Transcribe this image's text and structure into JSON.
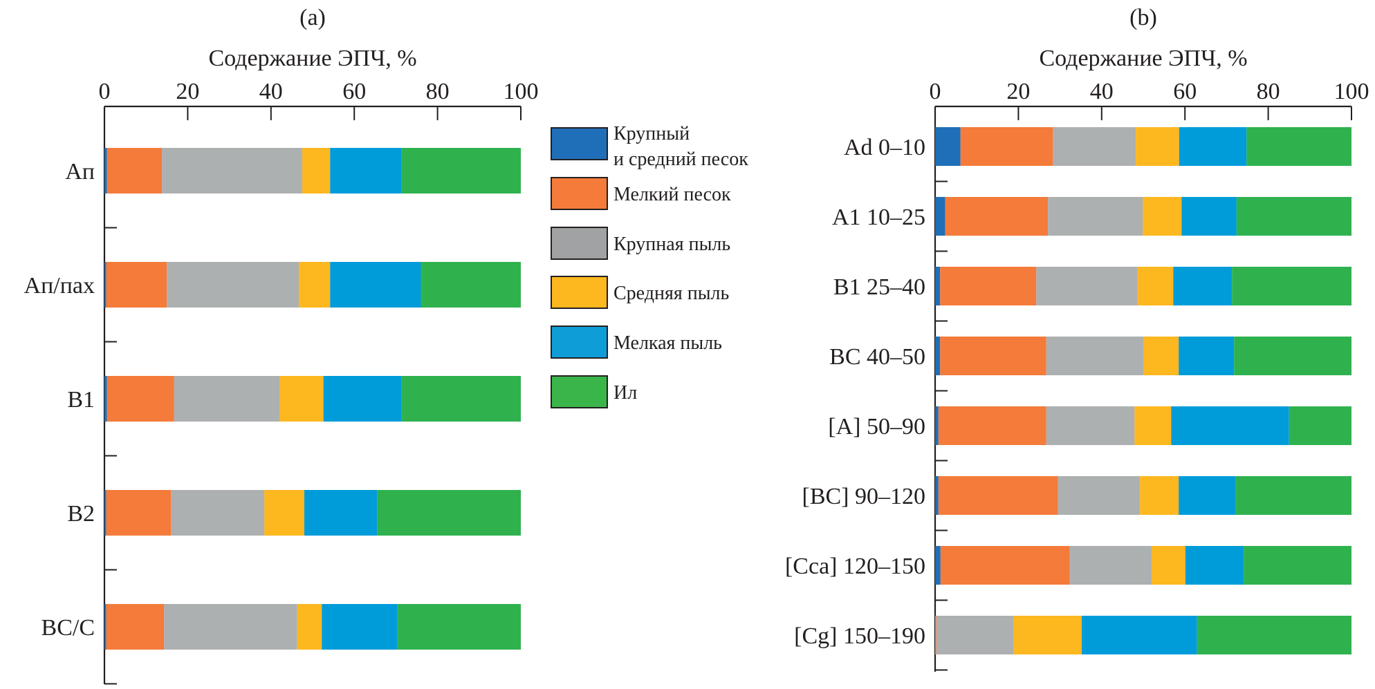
{
  "legend": {
    "items": [
      {
        "label_lines": [
          "Крупный",
          "и средний песок"
        ],
        "color": "#1f6fb8"
      },
      {
        "label_lines": [
          "Мелкий песок"
        ],
        "color": "#f47b3a"
      },
      {
        "label_lines": [
          "Крупная пыль"
        ],
        "color": "#a0a2a3"
      },
      {
        "label_lines": [
          "Средняя пыль"
        ],
        "color": "#fdb71f"
      },
      {
        "label_lines": [
          "Мелкая пыль"
        ],
        "color": "#0f9dd8"
      },
      {
        "label_lines": [
          "Ил"
        ],
        "color": "#3ab54a"
      }
    ]
  },
  "chart_data": [
    {
      "type": "bar",
      "orientation": "horizontal",
      "stacked": true,
      "panel_label": "(a)",
      "title": "",
      "xlabel": "Содержание ЭПЧ, %",
      "ylabel": "",
      "xlim": [
        0,
        100
      ],
      "xticks": [
        0,
        20,
        40,
        60,
        80,
        100
      ],
      "x_axis_position": "top",
      "grid": false,
      "categories": [
        "Ап",
        "Ап/пах",
        "B1",
        "B2",
        "BC/C"
      ],
      "series": [
        {
          "name": "Крупный и средний песок",
          "color": "#1f6fb8",
          "values": [
            0.6,
            0.4,
            0.6,
            0.4,
            0.4
          ]
        },
        {
          "name": "Мелкий песок",
          "color": "#f47b3a",
          "values": [
            13.2,
            14.6,
            16.1,
            15.6,
            13.9
          ]
        },
        {
          "name": "Крупная пыль",
          "color": "#adb0b1",
          "values": [
            33.7,
            31.7,
            25.4,
            22.4,
            32.0
          ]
        },
        {
          "name": "Средняя пыль",
          "color": "#fdb71f",
          "values": [
            6.7,
            7.5,
            10.5,
            9.6,
            5.9
          ]
        },
        {
          "name": "Мелкая пыль",
          "color": "#009cda",
          "values": [
            17.2,
            21.8,
            18.8,
            17.5,
            18.2
          ]
        },
        {
          "name": "Ил",
          "color": "#2fb24e",
          "values": [
            28.6,
            24.0,
            28.6,
            34.5,
            29.6
          ]
        }
      ]
    },
    {
      "type": "bar",
      "orientation": "horizontal",
      "stacked": true,
      "panel_label": "(b)",
      "title": "",
      "xlabel": "Содержание ЭПЧ, %",
      "ylabel": "",
      "xlim": [
        0,
        100
      ],
      "xticks": [
        0,
        20,
        40,
        60,
        80,
        100
      ],
      "x_axis_position": "top",
      "grid": false,
      "categories": [
        "Ad 0–10",
        "A1 10–25",
        "B1 25–40",
        "BC 40–50",
        "[A] 50–90",
        "[BC] 90–120",
        "[Cca] 120–150",
        "[Cg] 150–190"
      ],
      "series": [
        {
          "name": "Крупный и средний песок",
          "color": "#1f6fb8",
          "values": [
            6.1,
            2.4,
            1.2,
            1.2,
            0.8,
            0.8,
            1.3,
            0.0
          ]
        },
        {
          "name": "Мелкий песок",
          "color": "#f47b3a",
          "values": [
            22.2,
            24.7,
            23.1,
            25.5,
            25.9,
            28.7,
            31.0,
            0.3
          ]
        },
        {
          "name": "Крупная пыль",
          "color": "#adb0b1",
          "values": [
            19.9,
            22.8,
            24.3,
            23.4,
            21.2,
            19.7,
            19.7,
            18.6
          ]
        },
        {
          "name": "Средняя пыль",
          "color": "#fdb71f",
          "values": [
            10.4,
            9.3,
            8.6,
            8.4,
            8.8,
            9.3,
            8.1,
            16.3
          ]
        },
        {
          "name": "Мелкая пыль",
          "color": "#009cda",
          "values": [
            16.2,
            13.2,
            14.1,
            13.3,
            28.3,
            13.7,
            14.0,
            27.7
          ]
        },
        {
          "name": "Ил",
          "color": "#2fb24e",
          "values": [
            25.2,
            27.6,
            28.7,
            28.2,
            15.0,
            27.8,
            25.9,
            37.1
          ]
        }
      ]
    }
  ]
}
